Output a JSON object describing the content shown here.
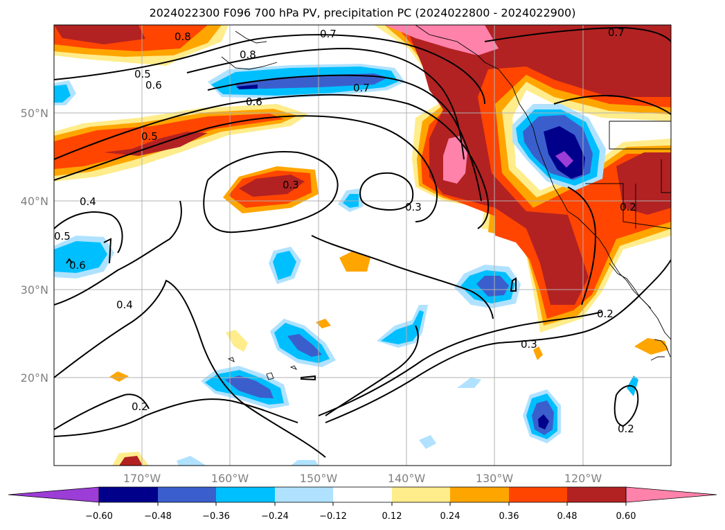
{
  "title": "2024022300 F096 700 hPa PV, precipitation PC (2024022800 - 2024022900)",
  "colors": {
    "c_n060": "#9b3dd6",
    "c_n048": "#00008b",
    "c_n036": "#3a5fcd",
    "c_n024": "#00bfff",
    "c_n012": "#b0e2ff",
    "c_0": "#ffffff",
    "c_012": "#ffec8b",
    "c_024": "#ffa500",
    "c_036": "#ff4500",
    "c_048": "#b22222",
    "c_060": "#ff82ab"
  },
  "axes": {
    "lon_ticks": [
      "170°W",
      "160°W",
      "150°W",
      "140°W",
      "130°W",
      "120°W"
    ],
    "lat_ticks": [
      "50°N",
      "40°N",
      "30°N",
      "20°N"
    ]
  },
  "colorbar": {
    "labels": [
      "−0.60",
      "−0.48",
      "−0.36",
      "−0.24",
      "−0.12",
      "0.12",
      "0.24",
      "0.36",
      "0.48",
      "0.60"
    ]
  },
  "pv_contour_labels": [
    "0.8",
    "0.8",
    "0.7",
    "0.7",
    "0.7",
    "0.6",
    "0.6",
    "0.6",
    "0.5",
    "0.5",
    "0.5",
    "0.4",
    "0.4",
    "0.3",
    "0.3",
    "0.3",
    "0.2",
    "0.2",
    "0.2",
    "0.2"
  ]
}
